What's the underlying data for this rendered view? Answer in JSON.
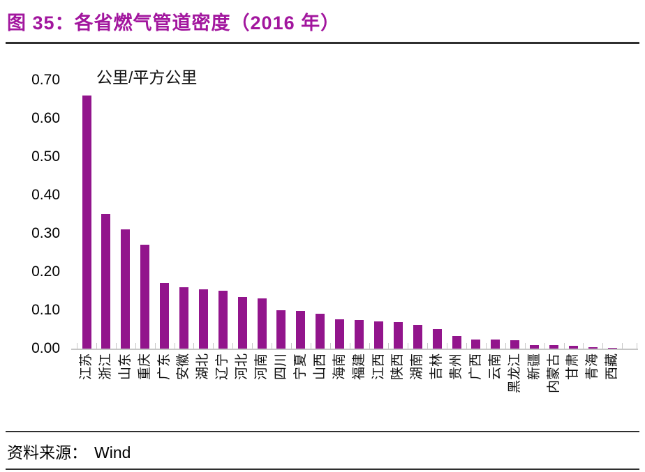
{
  "figure": {
    "number_title": "图 35：各省燃气管道密度（2016 年）",
    "source_label": "资料来源：",
    "source_value": "Wind"
  },
  "colors": {
    "title": "#A2169E",
    "bar": "#92158C",
    "axis": "#C6C6C6",
    "rule": "#2F2F2F",
    "text": "#000000"
  },
  "chart_data": {
    "type": "bar",
    "title": "各省燃气管道密度（2016 年）",
    "unit_label": "公里/平方公里",
    "xlabel": "",
    "ylabel": "公里/平方公里",
    "ylim": [
      0,
      0.7
    ],
    "ytick_labels": [
      "0.70",
      "0.60",
      "0.50",
      "0.40",
      "0.30",
      "0.20",
      "0.10",
      "0.00"
    ],
    "grid": false,
    "legend": false,
    "categories": [
      "江苏",
      "浙江",
      "山东",
      "重庆",
      "广东",
      "安徽",
      "湖北",
      "辽宁",
      "河北",
      "河南",
      "四川",
      "宁夏",
      "山西",
      "海南",
      "福建",
      "江西",
      "陕西",
      "湖南",
      "吉林",
      "贵州",
      "广西",
      "云南",
      "黑龙江",
      "新疆",
      "内蒙古",
      "甘肃",
      "青海",
      "西藏"
    ],
    "values": [
      0.66,
      0.35,
      0.31,
      0.27,
      0.17,
      0.16,
      0.155,
      0.15,
      0.135,
      0.13,
      0.1,
      0.098,
      0.09,
      0.076,
      0.074,
      0.071,
      0.069,
      0.062,
      0.051,
      0.032,
      0.024,
      0.023,
      0.021,
      0.009,
      0.009,
      0.007,
      0.003,
      0.001
    ]
  }
}
